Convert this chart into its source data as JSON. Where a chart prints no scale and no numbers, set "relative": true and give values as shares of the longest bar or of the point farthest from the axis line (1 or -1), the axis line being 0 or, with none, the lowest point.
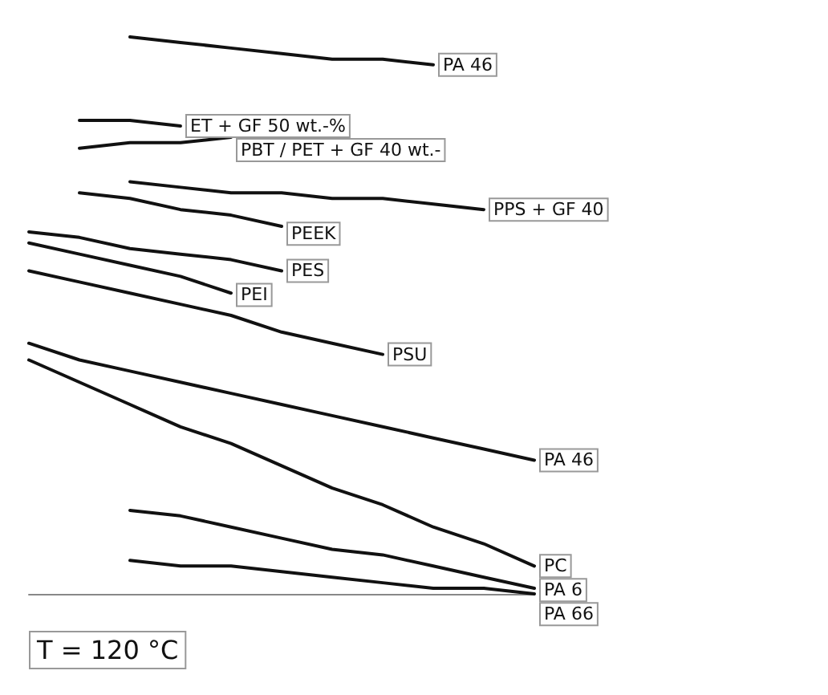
{
  "chart_data": {
    "type": "line",
    "relative": true,
    "categories": [
      null,
      null,
      null,
      null,
      null,
      null,
      null,
      null,
      null,
      null,
      null
    ],
    "marker": "none",
    "line_style": "solid",
    "legend": false,
    "annotations": [
      "T = 120 °C"
    ],
    "series": [
      {
        "name": "PA 46",
        "color": "#111111",
        "values": [
          null,
          null,
          1.0,
          0.99,
          0.98,
          0.97,
          0.96,
          0.96,
          0.95,
          null,
          null
        ]
      },
      {
        "name": "ET + GF 50 wt.-%",
        "color": "#111111",
        "values": [
          null,
          0.85,
          0.85,
          0.84,
          null,
          null,
          null,
          null,
          null,
          null,
          null
        ]
      },
      {
        "name": "PBT / PET + GF 40 wt.-",
        "color": "#111111",
        "values": [
          null,
          0.8,
          0.81,
          0.81,
          0.82,
          null,
          null,
          null,
          null,
          null,
          null
        ]
      },
      {
        "name": "PPS + GF 40",
        "color": "#111111",
        "values": [
          null,
          null,
          0.74,
          0.73,
          0.72,
          0.72,
          0.71,
          0.71,
          0.7,
          0.69,
          null
        ]
      },
      {
        "name": "PEEK",
        "color": "#111111",
        "values": [
          null,
          0.72,
          0.71,
          0.69,
          0.68,
          0.66,
          null,
          null,
          null,
          null,
          null
        ]
      },
      {
        "name": "PES",
        "color": "#111111",
        "values": [
          0.65,
          0.64,
          0.62,
          0.61,
          0.6,
          0.58,
          null,
          null,
          null,
          null,
          null
        ]
      },
      {
        "name": "PEI",
        "color": "#111111",
        "values": [
          0.63,
          0.61,
          0.59,
          0.57,
          0.54,
          null,
          null,
          null,
          null,
          null,
          null
        ]
      },
      {
        "name": "PSU",
        "color": "#111111",
        "values": [
          0.58,
          0.56,
          0.54,
          0.52,
          0.5,
          0.47,
          0.45,
          0.43,
          null,
          null,
          null
        ]
      },
      {
        "name": "PA 46",
        "color": "#111111",
        "values": [
          0.45,
          0.42,
          0.4,
          0.38,
          0.36,
          0.34,
          0.32,
          0.3,
          0.28,
          0.26,
          0.24
        ]
      },
      {
        "name": "PC",
        "color": "#111111",
        "values": [
          0.42,
          0.38,
          0.34,
          0.3,
          0.27,
          0.23,
          0.19,
          0.16,
          0.12,
          0.09,
          0.05
        ]
      },
      {
        "name": "PA 6",
        "color": "#111111",
        "values": [
          null,
          null,
          0.15,
          0.14,
          0.12,
          0.1,
          0.08,
          0.07,
          0.05,
          0.03,
          0.01
        ]
      },
      {
        "name": "PA 66",
        "color": "#111111",
        "values": [
          null,
          null,
          0.06,
          0.05,
          0.05,
          0.04,
          0.03,
          0.02,
          0.01,
          0.01,
          0.0
        ]
      }
    ]
  }
}
